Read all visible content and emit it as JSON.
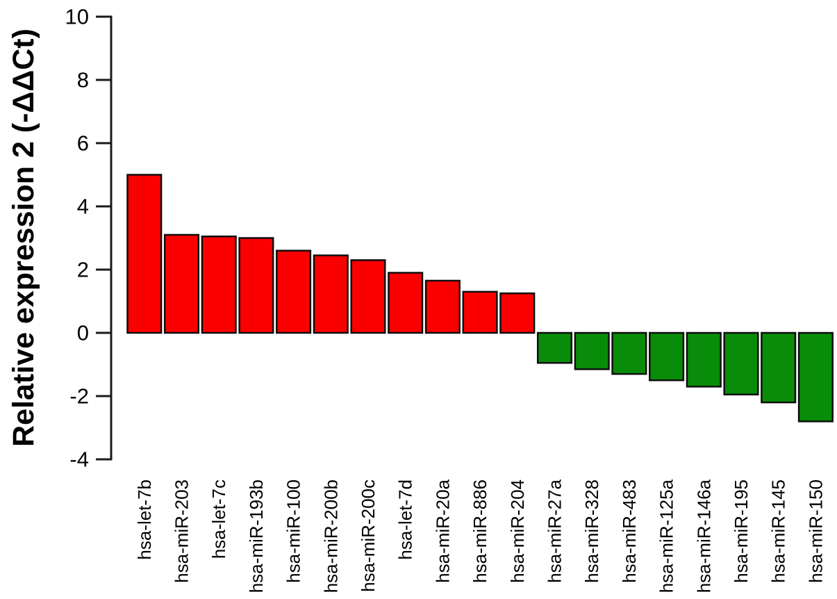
{
  "figure": {
    "background": "#ffffff"
  },
  "chart_data": {
    "type": "bar",
    "title": "",
    "xlabel": "",
    "ylabel": "Relative expression 2 (-ΔΔCt)",
    "categories": [
      "hsa-let-7b",
      "hsa-miR-203",
      "hsa-let-7c",
      "hsa-miR-193b",
      "hsa-miR-100",
      "hsa-miR-200b",
      "hsa-miR-200c",
      "hsa-let-7d",
      "hsa-miR-20a",
      "hsa-miR-886",
      "hsa-miR-204",
      "hsa-miR-27a",
      "hsa-miR-328",
      "hsa-miR-483",
      "hsa-miR-125a",
      "hsa-miR-146a",
      "hsa-miR-195",
      "hsa-miR-145",
      "hsa-miR-150"
    ],
    "values": [
      5.0,
      3.1,
      3.05,
      3.0,
      2.6,
      2.45,
      2.3,
      1.9,
      1.65,
      1.3,
      1.25,
      -0.95,
      -1.15,
      -1.3,
      -1.5,
      -1.7,
      -1.95,
      -2.2,
      -2.8
    ],
    "ylim": [
      -4,
      10
    ],
    "yticks": [
      10,
      8,
      6,
      4,
      2,
      0,
      -2,
      -4
    ],
    "grid": false,
    "x_tick_label_rotation": 90,
    "colors": {
      "positive_bar": "#fb0000",
      "negative_bar": "#098c09",
      "bar_border": "#0d0d0d",
      "axis": "#1a1a1a",
      "text": "#000000"
    }
  }
}
